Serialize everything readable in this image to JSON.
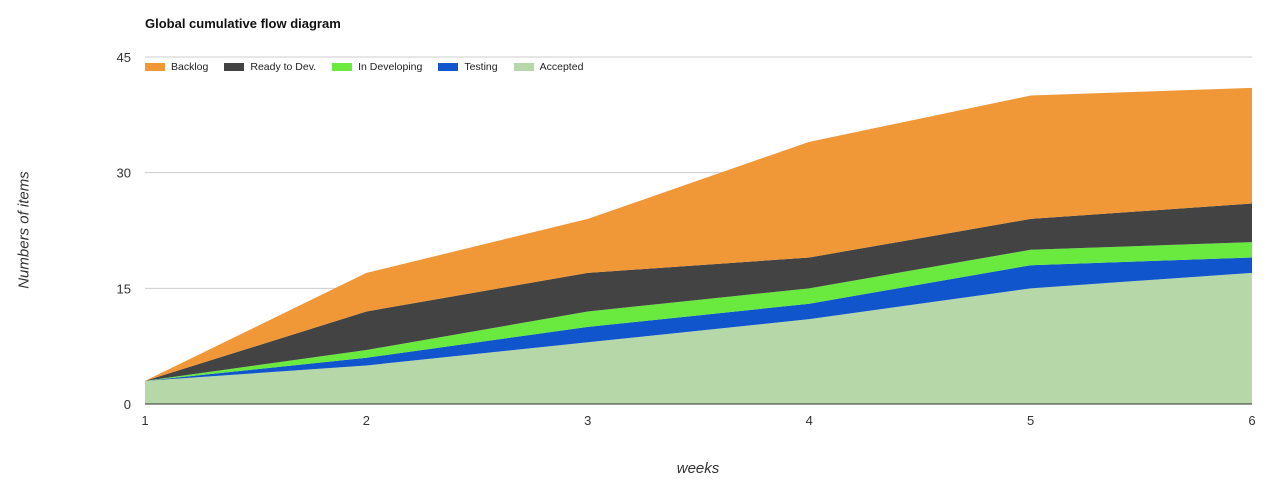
{
  "chart_data": {
    "type": "area",
    "stacked": true,
    "title": "Global cumulative flow diagram",
    "xlabel": "weeks",
    "ylabel": "Numbers of items",
    "x": [
      1,
      2,
      3,
      4,
      5,
      6
    ],
    "ylim": [
      0,
      45
    ],
    "yticks": [
      0,
      15,
      30,
      45
    ],
    "grid": true,
    "legend_position": "top-left",
    "series": [
      {
        "name": "Accepted",
        "color": "#b6d7a8",
        "values": [
          3,
          5,
          8,
          11,
          15,
          17
        ]
      },
      {
        "name": "Testing",
        "color": "#1155cc",
        "values": [
          0,
          1,
          2,
          2,
          3,
          2
        ]
      },
      {
        "name": "In Developing",
        "color": "#6aea3f",
        "values": [
          0,
          1,
          2,
          2,
          2,
          2
        ]
      },
      {
        "name": "Ready to Dev.",
        "color": "#434343",
        "values": [
          0,
          5,
          5,
          4,
          4,
          5
        ]
      },
      {
        "name": "Backlog",
        "color": "#f09737",
        "values": [
          0,
          5,
          7,
          15,
          16,
          15
        ]
      }
    ],
    "legend_order": [
      "Backlog",
      "Ready to Dev.",
      "In Developing",
      "Testing",
      "Accepted"
    ]
  }
}
